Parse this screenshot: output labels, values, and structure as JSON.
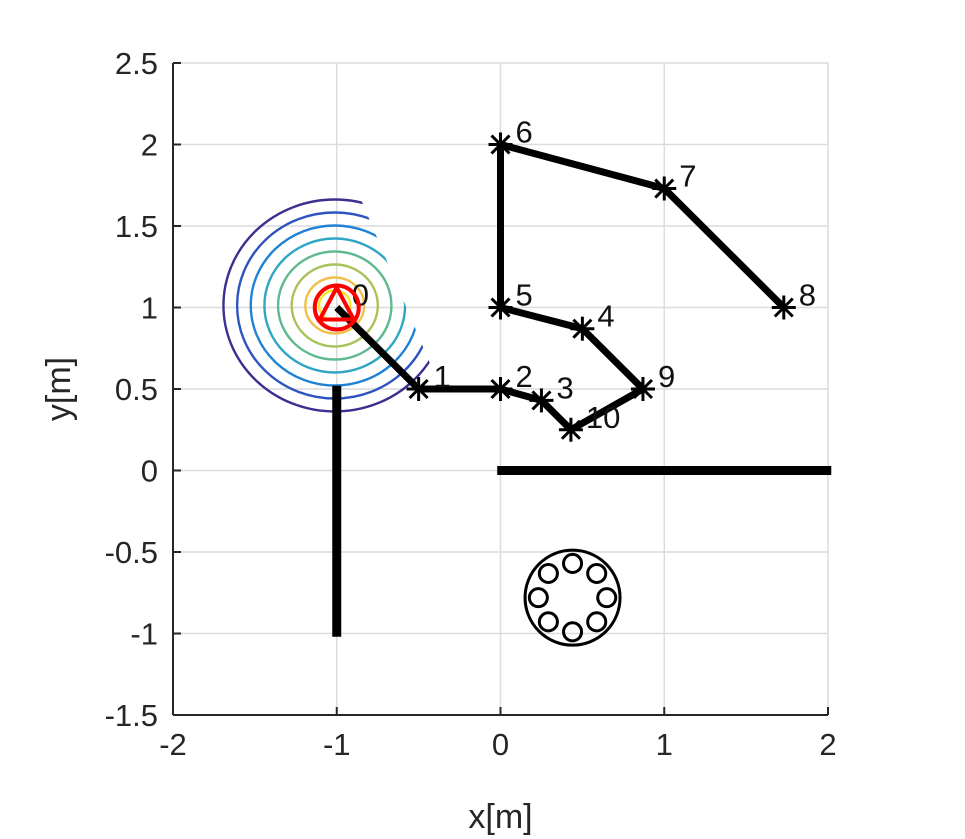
{
  "chart_data": {
    "type": "scatter",
    "title": "",
    "xlabel": "x[m]",
    "ylabel": "y[m]",
    "xlim": [
      -2,
      2
    ],
    "ylim": [
      -1.5,
      2.5
    ],
    "xticks": [
      -2,
      -1,
      0,
      1,
      2
    ],
    "yticks": [
      -1.5,
      -1,
      -0.5,
      0,
      0.5,
      1,
      1.5,
      2,
      2.5
    ],
    "xtick_labels": [
      "-2",
      "-1",
      "0",
      "1",
      "2"
    ],
    "ytick_labels": [
      "-1.5",
      "-1",
      "-0.5",
      "0",
      "0.5",
      "1",
      "1.5",
      "2",
      "2.5"
    ],
    "grid": true,
    "waypoints": [
      {
        "label": "0",
        "x": -1.0,
        "y": 1.0
      },
      {
        "label": "1",
        "x": -0.5,
        "y": 0.5
      },
      {
        "label": "2",
        "x": 0.0,
        "y": 0.5
      },
      {
        "label": "3",
        "x": 0.25,
        "y": 0.43
      },
      {
        "label": "10",
        "x": 0.43,
        "y": 0.25
      },
      {
        "label": "9",
        "x": 0.87,
        "y": 0.5
      },
      {
        "label": "4",
        "x": 0.5,
        "y": 0.87
      },
      {
        "label": "5",
        "x": 0.0,
        "y": 1.0
      },
      {
        "label": "6",
        "x": 0.0,
        "y": 2.0
      },
      {
        "label": "7",
        "x": 1.0,
        "y": 1.73
      },
      {
        "label": "8",
        "x": 1.73,
        "y": 1.0
      }
    ],
    "walls": [
      {
        "x": [
          -1.0,
          -1.0
        ],
        "y": [
          0.52,
          -1.02
        ]
      },
      {
        "x": [
          -0.02,
          2.02
        ],
        "y": [
          0.0,
          0.0
        ]
      }
    ],
    "robot": {
      "x": -1.0,
      "y": 1.0,
      "heading_deg": 90,
      "color": "#ff0000"
    },
    "obstacle": {
      "center": [
        0.44,
        -0.78
      ],
      "radius": 0.29,
      "inner_circles": 8
    },
    "contour_colors": [
      "#fde725",
      "#f0c14a",
      "#a8c35a",
      "#5fb98f",
      "#2fa5c4",
      "#1f82d4",
      "#2f54c0",
      "#3b2f8f"
    ],
    "colors": {
      "path": "#000000",
      "grid": "#dcdcdc",
      "axis": "#262626"
    }
  }
}
